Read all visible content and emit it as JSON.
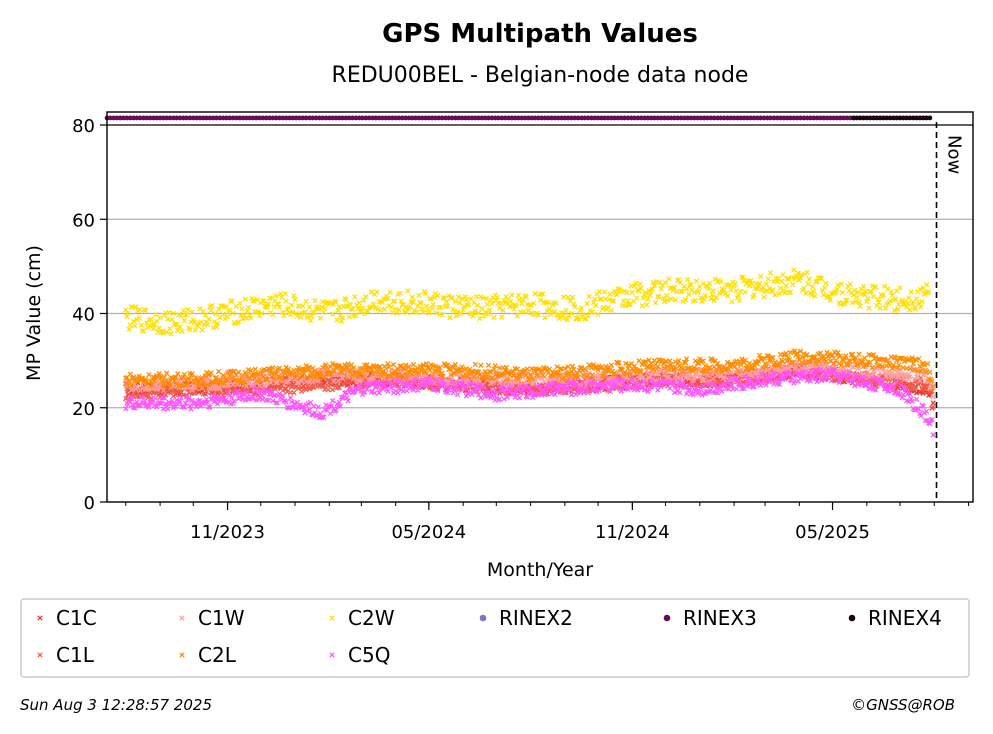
{
  "chart_data": {
    "type": "scatter",
    "title": "GPS Multipath Values",
    "subtitle": "REDU00BEL - Belgian-node data node",
    "xlabel": "Month/Year",
    "ylabel": "MP Value (cm)",
    "ylim": [
      0,
      80
    ],
    "y_ticks": [
      0,
      20,
      40,
      60,
      80
    ],
    "x_range": [
      "2023-07-15",
      "2025-09-05"
    ],
    "x_ticks": [
      {
        "date": "2023-11-01",
        "label": "11/2023"
      },
      {
        "date": "2024-05-01",
        "label": "05/2024"
      },
      {
        "date": "2024-11-01",
        "label": "11/2024"
      },
      {
        "date": "2025-05-01",
        "label": "05/2025"
      }
    ],
    "grid": "horizontal",
    "now_date": "2025-08-03",
    "now_label": "Now",
    "series": [
      {
        "name": "C1C",
        "color": "#e8372c",
        "marker": "x",
        "points": [
          [
            "2023-08-01",
            24
          ],
          [
            "2023-10-01",
            24
          ],
          [
            "2023-12-01",
            25
          ],
          [
            "2024-02-01",
            26
          ],
          [
            "2024-04-01",
            26
          ],
          [
            "2024-06-01",
            25
          ],
          [
            "2024-08-01",
            24
          ],
          [
            "2024-10-01",
            25
          ],
          [
            "2024-12-01",
            26
          ],
          [
            "2025-02-01",
            26
          ],
          [
            "2025-04-01",
            28
          ],
          [
            "2025-06-01",
            26
          ],
          [
            "2025-07-25",
            24
          ],
          [
            "2025-08-01",
            20
          ]
        ]
      },
      {
        "name": "C1L",
        "color": "#f25a4a",
        "marker": "x",
        "points": [
          [
            "2023-08-01",
            23
          ],
          [
            "2023-10-01",
            24
          ],
          [
            "2023-12-01",
            24
          ],
          [
            "2024-02-01",
            25
          ],
          [
            "2024-04-01",
            26
          ],
          [
            "2024-06-01",
            25
          ],
          [
            "2024-08-01",
            24
          ],
          [
            "2024-10-01",
            25
          ],
          [
            "2024-12-01",
            26
          ],
          [
            "2025-02-01",
            26
          ],
          [
            "2025-04-01",
            28
          ],
          [
            "2025-06-01",
            26
          ],
          [
            "2025-07-25",
            25
          ],
          [
            "2025-08-01",
            21
          ]
        ]
      },
      {
        "name": "C1W",
        "color": "#ff9f9f",
        "marker": "x",
        "points": [
          [
            "2023-08-01",
            25
          ],
          [
            "2023-10-01",
            25
          ],
          [
            "2023-12-01",
            26
          ],
          [
            "2024-02-01",
            27
          ],
          [
            "2024-04-01",
            27
          ],
          [
            "2024-06-01",
            26
          ],
          [
            "2024-08-01",
            26
          ],
          [
            "2024-10-01",
            26
          ],
          [
            "2024-12-01",
            27
          ],
          [
            "2025-02-01",
            27
          ],
          [
            "2025-04-01",
            29
          ],
          [
            "2025-06-01",
            28
          ],
          [
            "2025-07-25",
            27
          ],
          [
            "2025-08-01",
            22
          ]
        ]
      },
      {
        "name": "C2L",
        "color": "#ff8c00",
        "marker": "x",
        "points": [
          [
            "2023-08-01",
            26
          ],
          [
            "2023-10-01",
            26
          ],
          [
            "2023-12-01",
            27
          ],
          [
            "2024-02-01",
            28
          ],
          [
            "2024-04-01",
            28
          ],
          [
            "2024-06-01",
            28
          ],
          [
            "2024-08-01",
            27
          ],
          [
            "2024-10-01",
            28
          ],
          [
            "2024-12-01",
            29
          ],
          [
            "2025-02-01",
            29
          ],
          [
            "2025-04-01",
            31
          ],
          [
            "2025-06-01",
            30
          ],
          [
            "2025-07-25",
            29
          ],
          [
            "2025-08-01",
            23
          ]
        ]
      },
      {
        "name": "C2W",
        "color": "#ffe000",
        "marker": "x",
        "points": [
          [
            "2023-08-01",
            39
          ],
          [
            "2023-09-15",
            38
          ],
          [
            "2023-11-01",
            40
          ],
          [
            "2023-12-15",
            42
          ],
          [
            "2024-02-01",
            40
          ],
          [
            "2024-03-15",
            43
          ],
          [
            "2024-05-01",
            42
          ],
          [
            "2024-06-15",
            41
          ],
          [
            "2024-08-01",
            42
          ],
          [
            "2024-09-15",
            41
          ],
          [
            "2024-11-01",
            44
          ],
          [
            "2024-12-15",
            45
          ],
          [
            "2025-02-01",
            45
          ],
          [
            "2025-04-01",
            47
          ],
          [
            "2025-05-15",
            44
          ],
          [
            "2025-07-01",
            43
          ],
          [
            "2025-07-28",
            44
          ]
        ]
      },
      {
        "name": "C5Q",
        "color": "#ff55ff",
        "marker": "x",
        "points": [
          [
            "2023-08-01",
            21
          ],
          [
            "2023-10-01",
            21
          ],
          [
            "2023-12-01",
            23
          ],
          [
            "2024-01-25",
            19
          ],
          [
            "2024-03-01",
            24
          ],
          [
            "2024-05-01",
            25
          ],
          [
            "2024-07-01",
            23
          ],
          [
            "2024-09-01",
            24
          ],
          [
            "2024-11-01",
            25
          ],
          [
            "2025-01-01",
            24
          ],
          [
            "2025-03-01",
            26
          ],
          [
            "2025-05-01",
            27
          ],
          [
            "2025-07-01",
            24
          ],
          [
            "2025-07-30",
            17
          ],
          [
            "2025-08-01",
            12
          ]
        ]
      },
      {
        "name": "RINEX2",
        "color": "#7a78b8",
        "marker": "o",
        "points": []
      },
      {
        "name": "RINEX3",
        "color": "#6a0a5a",
        "marker": "o",
        "points": [
          [
            "2023-07-15",
            81.5
          ],
          [
            "2025-05-20",
            81.5
          ]
        ]
      },
      {
        "name": "RINEX4",
        "color": "#1a0010",
        "marker": "o",
        "points": [
          [
            "2025-05-20",
            81.5
          ],
          [
            "2025-07-30",
            81.5
          ]
        ]
      }
    ],
    "legend_placement": "bottom"
  },
  "footer": {
    "timestamp": "Sun Aug  3 12:28:57 2025",
    "credit": "©GNSS@ROB"
  }
}
